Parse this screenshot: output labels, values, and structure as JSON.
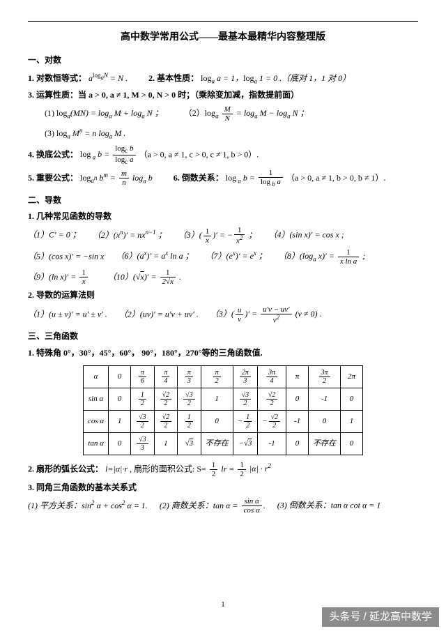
{
  "title": "高中数学常用公式——最基本最精华内容整理版",
  "sec1": {
    "heading": "一、对数",
    "l1a": "1.  对数恒等式：",
    "l1b": "a",
    "l1c": "log",
    "l1d": "a",
    "l1e": "N",
    "l1f": " = N .",
    "l1g": "2.  基本性质：",
    "l1h": "log",
    "l1i": "a",
    "l1j": " a = 1，",
    "l1k": "log",
    "l1l": "a",
    "l1m": " 1 = 0 .（底对 1，1 对 0）",
    "l3": "3.  运算性质：当 a > 0, a ≠ 1, M > 0, N > 0 时；（乘除变加减，指数提前面）",
    "l3_1a": "(1) log",
    "l3_1b": "a",
    "l3_1c": "(MN) = log",
    "l3_1d": "a",
    "l3_1e": " M + log",
    "l3_1f": "a",
    "l3_1g": " N ；",
    "l3_2a": "（2）log",
    "l3_2b": "a",
    "l3_2num": "M",
    "l3_2den": "N",
    "l3_2c": " = log",
    "l3_2d": "a",
    "l3_2e": " M − log",
    "l3_2f": "a",
    "l3_2g": " N  ；",
    "l3_3a": "(3) log",
    "l3_3b": "a",
    "l3_3c": " M",
    "l3_3d": "n",
    "l3_3e": " = n log",
    "l3_3f": "a",
    "l3_3g": " M .",
    "l4a": "4.  换底公式：",
    "l4b": "log",
    "l4c": " a",
    "l4d": " b = ",
    "l4num1": "log",
    "l4num2": "c",
    "l4num3": " b",
    "l4den1": "log",
    "l4den2": "c",
    "l4den3": " a",
    "l4e": "（a > 0, a ≠ 1, c > 0, c ≠ 1, b > 0）.",
    "l5a": "5.  重要公式：",
    "l5b": "log",
    "l5c": "a",
    "l5c2": "n",
    "l5d": " b",
    "l5e": "m",
    "l5f": " = ",
    "l5num": "m",
    "l5den": "n",
    "l5g": " log",
    "l5h": "a",
    "l5i": " b",
    "l6a": "6.  倒数关系：",
    "l6b": "log",
    "l6c": " a",
    "l6d": " b = ",
    "l6num": "1",
    "l6den1": "log",
    "l6den2": " b",
    "l6den3": " a",
    "l6e": "（a > 0, a ≠ 1, b > 0, b ≠ 1）."
  },
  "sec2": {
    "heading": "二、导数",
    "h1": "1.  几种常见函数的导数",
    "d1a": "（1）C′ = 0 ；",
    "d2a": "（2）(x",
    "d2b": "n",
    "d2c": ")′ = nx",
    "d2d": "n−1",
    "d2e": " ；",
    "d3a": "（3）(",
    "d3num": "1",
    "d3den": "x",
    "d3b": ")′ = −",
    "d3num2": "1",
    "d3den2": "x",
    "d3den2s": "2",
    "d3c": " ；",
    "d4a": "（4）(sin x)′ = cos x ;",
    "d5a": "（5）(cos x)′ = −sin x",
    "d6a": "（6）(a",
    "d6b": "x",
    "d6c": ")′ = a",
    "d6d": "x",
    "d6e": " ln a ；",
    "d7a": "（7）(e",
    "d7b": "x",
    "d7c": ")′ = e",
    "d7d": "x",
    "d7e": " ；",
    "d8a": "（8）(log",
    "d8b": "a",
    "d8c": " x)′ = ",
    "d8num": "1",
    "d8den": "x ln a",
    "d8d": " ;",
    "d9a": "（9）(ln x)′ = ",
    "d9num": "1",
    "d9den": "x",
    "d10a": "（10）(",
    "d10b": "x",
    "d10c": ")′ = ",
    "d10num": "1",
    "d10den1": "2",
    "d10den2": "x",
    "d10d": " .",
    "h2": "2.  导数的运算法则",
    "r1": "（1）(u ± v)′ = u′ ± v′ .",
    "r2": "（2）(uv)′ = u′v + uv′ .",
    "r3a": "（3）(",
    "r3num1": "u",
    "r3den1": "v",
    "r3b": ")′ = ",
    "r3num2": "u′v − uv′",
    "r3den2": "v",
    "r3den2s": "2",
    "r3c": " (v ≠ 0) ."
  },
  "sec3": {
    "heading": "三、三角函数",
    "h1": "1.    特殊角 0°，30°，45°，60°， 90°，180°，270°等的三角函数值.",
    "table": {
      "rows": [
        [
          "α",
          "0",
          "π/6",
          "π/4",
          "π/3",
          "π/2",
          "2π/3",
          "3π/4",
          "π",
          "3π/2",
          "2π"
        ],
        [
          "sin α",
          "0",
          "1/2",
          "√2/2",
          "√3/2",
          "1",
          "√3/2",
          "√2/2",
          "0",
          "-1",
          "0"
        ],
        [
          "cos α",
          "1",
          "√3/2",
          "√2/2",
          "1/2",
          "0",
          "−1/2",
          "−√2/2",
          "-1",
          "0",
          "1"
        ],
        [
          "tan α",
          "0",
          "√3/3",
          "1",
          "√3",
          "不存在",
          "−√3",
          "-1",
          "0",
          "不存在",
          "0"
        ]
      ]
    },
    "h2a": "2.  扇形的弧长公式：",
    "h2b": "l=|α|·r",
    "h2c": ", 扇形的面积公式:  S= ",
    "h2num1": "1",
    "h2den1": "2",
    "h2d": "lr =",
    "h2num2": "1",
    "h2den2": "2",
    "h2e": "|α| · r",
    "h2f": "2",
    "h3": "3.  同角三角函数的基本关系式",
    "l3_1a": "(1) 平方关系：sin",
    "l3_1b": "2",
    "l3_1c": " α + cos",
    "l3_1d": "2",
    "l3_1e": " α = 1.",
    "l3_2a": "(2) 商数关系：tan α = ",
    "l3_2num": "sin α",
    "l3_2den": "cos α",
    "l3_2b": ".",
    "l3_3a": "(3) 倒数关系：tan α cot α = 1"
  },
  "pagenum": "1",
  "watermark": "头条号 / 延龙高中数学"
}
